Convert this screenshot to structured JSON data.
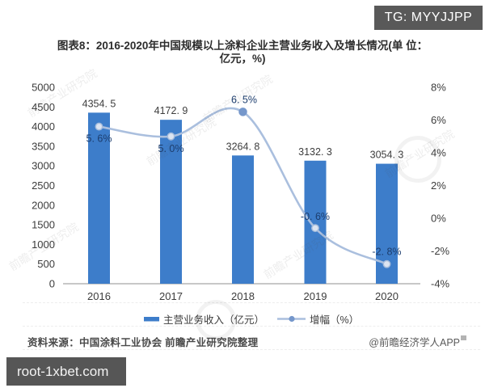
{
  "badges": {
    "tg": "TG: MYYJJPP",
    "bottom_left": "root-1xbet.com"
  },
  "title_line1": "图表8：2016-2020年中国规模以上涂料企业主营业务收入及增长情况(单 位：",
  "title_line2": "亿元，%)",
  "source": "资料来源：中国涂料工业协会 前瞻产业研究院整理",
  "credit": "@前瞻经济学人APP",
  "watermark_text": "前瞻产业研究院",
  "colors": {
    "bar": "#3d7dca",
    "line": "#aabfde",
    "marker_ring_fill": "#dce4f1",
    "marker_ring_stroke": "#a7bddc",
    "marker_solid": "#7597cb",
    "pct_label": "#1c3d6e",
    "value_label": "#3d3d3d",
    "axis_text": "#3c3c3c",
    "axis_line": "#a6a6a6"
  },
  "chart_data": {
    "type": "bar+line combo",
    "categories": [
      "2016",
      "2017",
      "2018",
      "2019",
      "2020"
    ],
    "series": [
      {
        "name": "主营业务收入（亿元）",
        "type": "bar",
        "axis": "left",
        "values": [
          4354.5,
          4172.9,
          3264.8,
          3132.3,
          3054.3
        ],
        "labels": [
          "4354. 5",
          "4172. 9",
          "3264. 8",
          "3132. 3",
          "3054. 3"
        ]
      },
      {
        "name": "增幅（%）",
        "type": "line",
        "axis": "right",
        "values": [
          5.6,
          5.0,
          6.5,
          -0.6,
          -2.8
        ],
        "labels": [
          "5. 6%",
          "5. 0%",
          "6. 5%",
          "-0. 6%",
          "-2. 8%"
        ]
      }
    ],
    "left_axis": {
      "min": 0,
      "max": 5000,
      "step": 500
    },
    "right_axis": {
      "min": -4,
      "max": 8,
      "step": 2,
      "suffix": "%"
    },
    "legend": [
      "主营业务收入（亿元）",
      "增幅（%）"
    ],
    "grid": "off",
    "legend_position": "bottom-center"
  }
}
